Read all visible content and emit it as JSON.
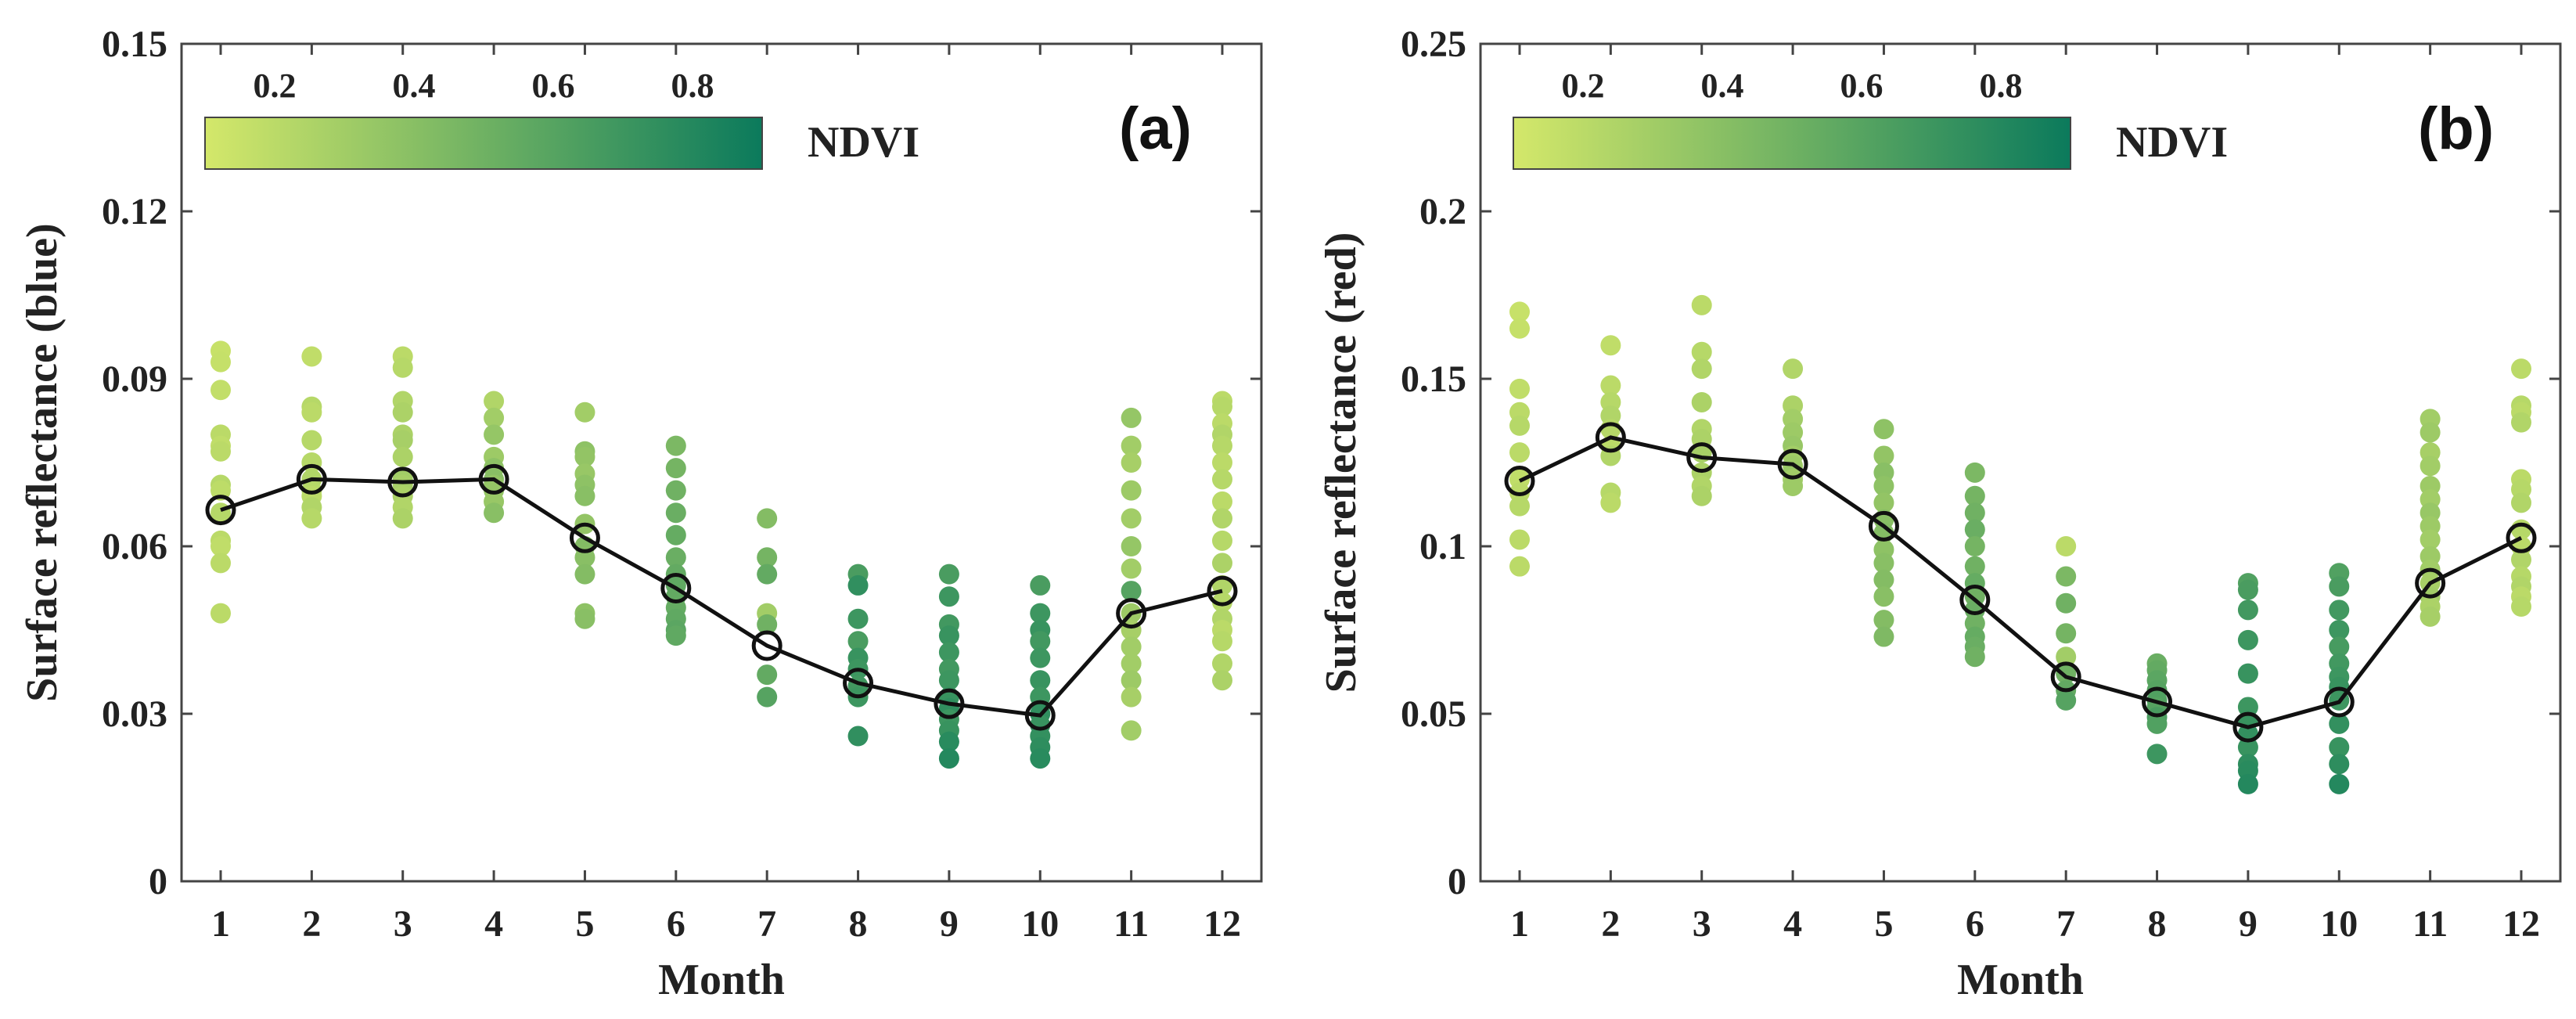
{
  "chart_data": [
    {
      "type": "scatter",
      "panel_label": "(a)",
      "ylabel": "Surface reflectance (blue)",
      "xlabel": "Month",
      "ylim": [
        0,
        0.15
      ],
      "yticks": [
        "0",
        "0.03",
        "0.06",
        "0.09",
        "0.12",
        "0.15"
      ],
      "ytick_values": [
        0,
        0.03,
        0.06,
        0.09,
        0.12,
        0.15
      ],
      "xticks": [
        "1",
        "2",
        "3",
        "4",
        "5",
        "6",
        "7",
        "8",
        "9",
        "10",
        "11",
        "12"
      ],
      "colorbar": {
        "label": "NDVI",
        "ticks": [
          "0.2",
          "0.4",
          "0.6",
          "0.8"
        ],
        "tick_values": [
          0.2,
          0.4,
          0.6,
          0.8
        ],
        "range": [
          0.1,
          0.9
        ],
        "colors": [
          "#d4e86a",
          "#0b7a5c"
        ]
      },
      "mean_line": [
        0.0665,
        0.072,
        0.0715,
        0.072,
        0.0615,
        0.0525,
        0.0422,
        0.0355,
        0.0318,
        0.0297,
        0.048,
        0.052
      ],
      "points": [
        {
          "month": 1,
          "values": [
            0.095,
            0.093,
            0.088,
            0.08,
            0.078,
            0.077,
            0.071,
            0.07,
            0.066,
            0.061,
            0.06,
            0.057,
            0.048
          ],
          "ndvi": [
            0.15,
            0.16,
            0.17,
            0.2,
            0.18,
            0.2,
            0.22,
            0.19,
            0.22,
            0.2,
            0.18,
            0.2,
            0.2
          ]
        },
        {
          "month": 2,
          "values": [
            0.094,
            0.085,
            0.084,
            0.079,
            0.075,
            0.072,
            0.07,
            0.069,
            0.067,
            0.065
          ],
          "ndvi": [
            0.18,
            0.22,
            0.2,
            0.22,
            0.22,
            0.24,
            0.22,
            0.2,
            0.24,
            0.22
          ]
        },
        {
          "month": 3,
          "values": [
            0.094,
            0.092,
            0.086,
            0.084,
            0.08,
            0.079,
            0.076,
            0.072,
            0.071,
            0.069,
            0.067,
            0.065
          ],
          "ndvi": [
            0.2,
            0.22,
            0.24,
            0.26,
            0.26,
            0.28,
            0.26,
            0.3,
            0.28,
            0.26,
            0.24,
            0.26
          ]
        },
        {
          "month": 4,
          "values": [
            0.086,
            0.083,
            0.08,
            0.076,
            0.074,
            0.072,
            0.071,
            0.07,
            0.068,
            0.066
          ],
          "ndvi": [
            0.24,
            0.3,
            0.35,
            0.32,
            0.38,
            0.4,
            0.36,
            0.35,
            0.34,
            0.4
          ]
        },
        {
          "month": 5,
          "values": [
            0.084,
            0.077,
            0.076,
            0.073,
            0.071,
            0.069,
            0.064,
            0.06,
            0.058,
            0.055,
            0.048,
            0.047
          ],
          "ndvi": [
            0.3,
            0.38,
            0.36,
            0.34,
            0.38,
            0.4,
            0.36,
            0.42,
            0.4,
            0.42,
            0.38,
            0.4
          ]
        },
        {
          "month": 6,
          "values": [
            0.078,
            0.074,
            0.07,
            0.066,
            0.062,
            0.058,
            0.055,
            0.053,
            0.051,
            0.049,
            0.047,
            0.045,
            0.044
          ],
          "ndvi": [
            0.45,
            0.48,
            0.5,
            0.52,
            0.54,
            0.52,
            0.55,
            0.56,
            0.55,
            0.54,
            0.56,
            0.58,
            0.56
          ]
        },
        {
          "month": 7,
          "values": [
            0.065,
            0.058,
            0.055,
            0.048,
            0.046,
            0.037,
            0.033
          ],
          "ndvi": [
            0.42,
            0.48,
            0.55,
            0.3,
            0.5,
            0.55,
            0.6
          ]
        },
        {
          "month": 8,
          "values": [
            0.055,
            0.053,
            0.047,
            0.043,
            0.04,
            0.038,
            0.035,
            0.033,
            0.026
          ],
          "ndvi": [
            0.65,
            0.75,
            0.7,
            0.65,
            0.72,
            0.7,
            0.68,
            0.7,
            0.75
          ]
        },
        {
          "month": 9,
          "values": [
            0.055,
            0.051,
            0.046,
            0.044,
            0.041,
            0.038,
            0.036,
            0.033,
            0.031,
            0.029,
            0.027,
            0.025,
            0.022
          ],
          "ndvi": [
            0.65,
            0.7,
            0.68,
            0.72,
            0.7,
            0.68,
            0.7,
            0.72,
            0.75,
            0.7,
            0.72,
            0.78,
            0.8
          ]
        },
        {
          "month": 10,
          "values": [
            0.053,
            0.048,
            0.045,
            0.043,
            0.04,
            0.036,
            0.033,
            0.03,
            0.028,
            0.026,
            0.024,
            0.022
          ],
          "ndvi": [
            0.65,
            0.7,
            0.72,
            0.68,
            0.7,
            0.72,
            0.7,
            0.75,
            0.72,
            0.74,
            0.76,
            0.78
          ]
        },
        {
          "month": 11,
          "values": [
            0.083,
            0.078,
            0.075,
            0.07,
            0.065,
            0.06,
            0.056,
            0.052,
            0.048,
            0.045,
            0.042,
            0.039,
            0.036,
            0.033,
            0.027
          ],
          "ndvi": [
            0.35,
            0.3,
            0.28,
            0.32,
            0.3,
            0.35,
            0.3,
            0.6,
            0.32,
            0.28,
            0.3,
            0.3,
            0.32,
            0.28,
            0.3
          ]
        },
        {
          "month": 12,
          "values": [
            0.086,
            0.085,
            0.082,
            0.08,
            0.078,
            0.075,
            0.072,
            0.068,
            0.065,
            0.061,
            0.057,
            0.053,
            0.05,
            0.047,
            0.045,
            0.043,
            0.039,
            0.036
          ],
          "ndvi": [
            0.2,
            0.22,
            0.2,
            0.24,
            0.22,
            0.2,
            0.22,
            0.2,
            0.24,
            0.22,
            0.26,
            0.24,
            0.22,
            0.24,
            0.2,
            0.22,
            0.24,
            0.26
          ]
        }
      ]
    },
    {
      "type": "scatter",
      "panel_label": "(b)",
      "ylabel": "Surface reflectance (red)",
      "xlabel": "Month",
      "ylim": [
        0,
        0.25
      ],
      "yticks": [
        "0",
        "0.05",
        "0.1",
        "0.15",
        "0.2",
        "0.25"
      ],
      "ytick_values": [
        0,
        0.05,
        0.1,
        0.15,
        0.2,
        0.25
      ],
      "xticks": [
        "1",
        "2",
        "3",
        "4",
        "5",
        "6",
        "7",
        "8",
        "9",
        "10",
        "11",
        "12"
      ],
      "colorbar": {
        "label": "NDVI",
        "ticks": [
          "0.2",
          "0.4",
          "0.6",
          "0.8"
        ],
        "tick_values": [
          0.2,
          0.4,
          0.6,
          0.8
        ],
        "range": [
          0.1,
          0.9
        ],
        "colors": [
          "#d4e86a",
          "#0b7a5c"
        ]
      },
      "mean_line": [
        0.1195,
        0.1325,
        0.1265,
        0.1245,
        0.106,
        0.084,
        0.061,
        0.0535,
        0.046,
        0.0535,
        0.089,
        0.1025
      ],
      "points": [
        {
          "month": 1,
          "values": [
            0.17,
            0.165,
            0.147,
            0.14,
            0.136,
            0.128,
            0.12,
            0.116,
            0.112,
            0.102,
            0.094
          ],
          "ndvi": [
            0.15,
            0.16,
            0.18,
            0.2,
            0.22,
            0.2,
            0.18,
            0.2,
            0.22,
            0.2,
            0.2
          ]
        },
        {
          "month": 2,
          "values": [
            0.16,
            0.148,
            0.143,
            0.139,
            0.135,
            0.13,
            0.127,
            0.116,
            0.113
          ],
          "ndvi": [
            0.18,
            0.2,
            0.22,
            0.24,
            0.22,
            0.2,
            0.24,
            0.22,
            0.2
          ]
        },
        {
          "month": 3,
          "values": [
            0.172,
            0.158,
            0.153,
            0.143,
            0.135,
            0.132,
            0.128,
            0.122,
            0.118,
            0.115
          ],
          "ndvi": [
            0.2,
            0.22,
            0.24,
            0.26,
            0.24,
            0.26,
            0.28,
            0.26,
            0.24,
            0.26
          ]
        },
        {
          "month": 4,
          "values": [
            0.153,
            0.142,
            0.138,
            0.134,
            0.13,
            0.127,
            0.124,
            0.122,
            0.12,
            0.118
          ],
          "ndvi": [
            0.24,
            0.26,
            0.3,
            0.32,
            0.34,
            0.3,
            0.32,
            0.34,
            0.3,
            0.32
          ]
        },
        {
          "month": 5,
          "values": [
            0.135,
            0.127,
            0.122,
            0.118,
            0.113,
            0.108,
            0.104,
            0.099,
            0.095,
            0.09,
            0.085,
            0.078,
            0.073
          ],
          "ndvi": [
            0.38,
            0.36,
            0.4,
            0.38,
            0.36,
            0.4,
            0.42,
            0.38,
            0.4,
            0.42,
            0.4,
            0.42,
            0.44
          ]
        },
        {
          "month": 6,
          "values": [
            0.122,
            0.115,
            0.11,
            0.105,
            0.1,
            0.094,
            0.089,
            0.085,
            0.081,
            0.077,
            0.073,
            0.07,
            0.067
          ],
          "ndvi": [
            0.45,
            0.48,
            0.5,
            0.52,
            0.48,
            0.5,
            0.54,
            0.5,
            0.52,
            0.5,
            0.54,
            0.52,
            0.5
          ]
        },
        {
          "month": 7,
          "values": [
            0.1,
            0.091,
            0.083,
            0.074,
            0.067,
            0.062,
            0.057,
            0.054
          ],
          "ndvi": [
            0.2,
            0.45,
            0.5,
            0.48,
            0.3,
            0.5,
            0.55,
            0.6
          ]
        },
        {
          "month": 8,
          "values": [
            0.065,
            0.063,
            0.06,
            0.057,
            0.054,
            0.052,
            0.049,
            0.047,
            0.038
          ],
          "ndvi": [
            0.52,
            0.55,
            0.58,
            0.6,
            0.62,
            0.6,
            0.65,
            0.62,
            0.7
          ]
        },
        {
          "month": 9,
          "values": [
            0.089,
            0.087,
            0.081,
            0.072,
            0.062,
            0.052,
            0.048,
            0.044,
            0.04,
            0.035,
            0.033,
            0.029
          ],
          "ndvi": [
            0.62,
            0.65,
            0.68,
            0.7,
            0.72,
            0.7,
            0.72,
            0.74,
            0.72,
            0.76,
            0.78,
            0.8
          ]
        },
        {
          "month": 10,
          "values": [
            0.092,
            0.088,
            0.081,
            0.075,
            0.07,
            0.065,
            0.061,
            0.058,
            0.054,
            0.047,
            0.04,
            0.035,
            0.029
          ],
          "ndvi": [
            0.62,
            0.65,
            0.68,
            0.7,
            0.66,
            0.68,
            0.7,
            0.72,
            0.7,
            0.74,
            0.72,
            0.76,
            0.8
          ]
        },
        {
          "month": 11,
          "values": [
            0.138,
            0.134,
            0.128,
            0.124,
            0.118,
            0.114,
            0.11,
            0.106,
            0.102,
            0.097,
            0.093,
            0.089,
            0.085,
            0.082,
            0.079
          ],
          "ndvi": [
            0.3,
            0.32,
            0.28,
            0.3,
            0.32,
            0.3,
            0.34,
            0.32,
            0.3,
            0.32,
            0.3,
            0.28,
            0.3,
            0.26,
            0.28
          ]
        },
        {
          "month": 12,
          "values": [
            0.153,
            0.142,
            0.14,
            0.137,
            0.12,
            0.117,
            0.113,
            0.105,
            0.1,
            0.096,
            0.091,
            0.088,
            0.085,
            0.082
          ],
          "ndvi": [
            0.2,
            0.22,
            0.2,
            0.24,
            0.2,
            0.22,
            0.24,
            0.22,
            0.2,
            0.24,
            0.22,
            0.24,
            0.2,
            0.22
          ]
        }
      ]
    }
  ]
}
